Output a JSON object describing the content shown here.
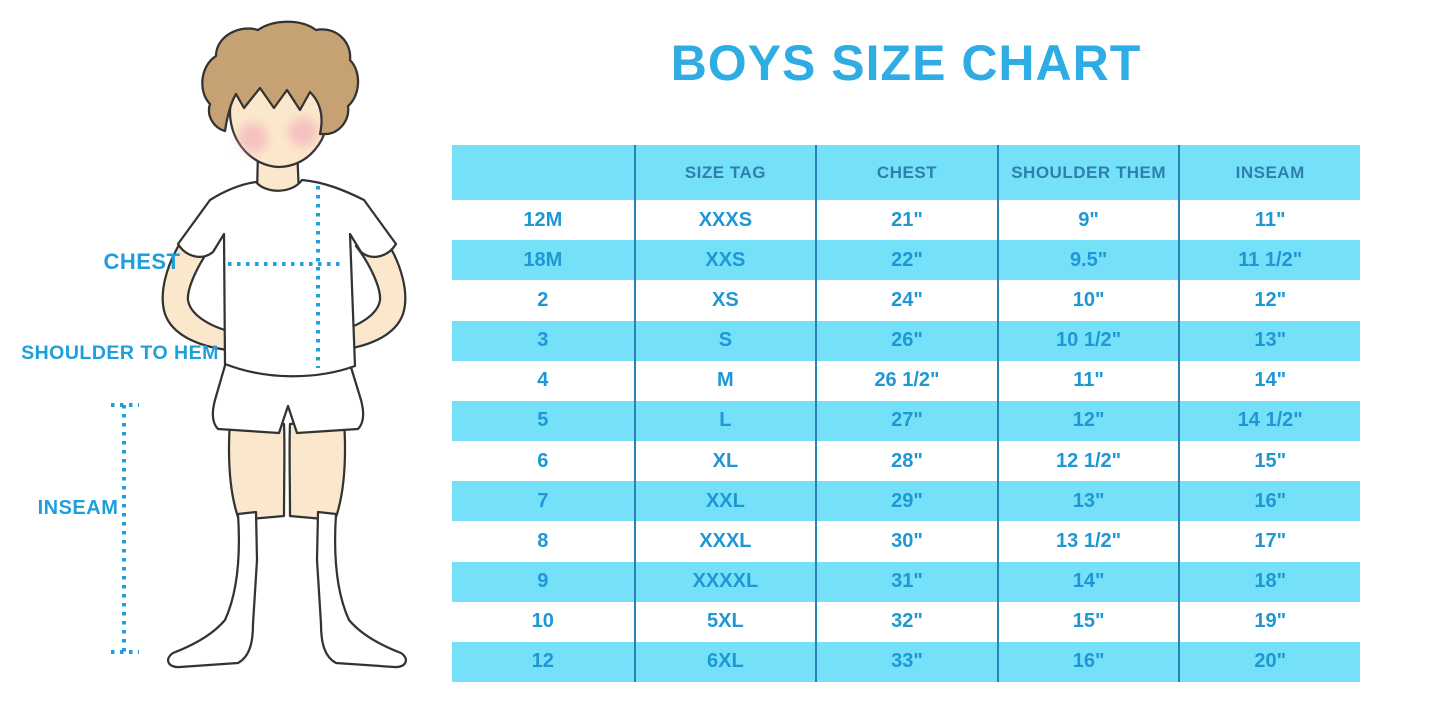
{
  "title": "BOYS SIZE CHART",
  "chart_data": {
    "type": "table",
    "title": "BOYS SIZE CHART",
    "columns": [
      "",
      "SIZE TAG",
      "CHEST",
      "SHOULDER THEM",
      "INSEAM"
    ],
    "rows": [
      [
        "12M",
        "XXXS",
        "21\"",
        "9\"",
        "11\""
      ],
      [
        "18M",
        "XXS",
        "22\"",
        "9.5\"",
        "11 1/2\""
      ],
      [
        "2",
        "XS",
        "24\"",
        "10\"",
        "12\""
      ],
      [
        "3",
        "S",
        "26\"",
        "10 1/2\"",
        "13\""
      ],
      [
        "4",
        "M",
        "26 1/2\"",
        "11\"",
        "14\""
      ],
      [
        "5",
        "L",
        "27\"",
        "12\"",
        "14 1/2\""
      ],
      [
        "6",
        "XL",
        "28\"",
        "12 1/2\"",
        "15\""
      ],
      [
        "7",
        "XXL",
        "29\"",
        "13\"",
        "16\""
      ],
      [
        "8",
        "XXXL",
        "30\"",
        "13 1/2\"",
        "17\""
      ],
      [
        "9",
        "XXXXL",
        "31\"",
        "14\"",
        "18\""
      ],
      [
        "10",
        "5XL",
        "32\"",
        "15\"",
        "19\""
      ],
      [
        "12",
        "6XL",
        "33\"",
        "16\"",
        "20\""
      ]
    ],
    "layout": {
      "striped_rows": true,
      "stripe_start": "white",
      "header_background": "cyan"
    }
  },
  "diagram": {
    "labels": {
      "chest": "CHEST",
      "shoulder_to_hem": "SHOULDER TO HEM",
      "inseam": "INSEAM"
    }
  },
  "colors": {
    "accent_blue": "#2FACE4",
    "label_blue": "#1E9FDC",
    "row_text": "#1F97D4",
    "header_text": "#2E7FAD",
    "stripe_cyan": "#74E1F8",
    "separator": "#2A81B5",
    "skin": "#FBE8CC",
    "hair": "#C5A173",
    "blush": "#F2A8B8"
  }
}
